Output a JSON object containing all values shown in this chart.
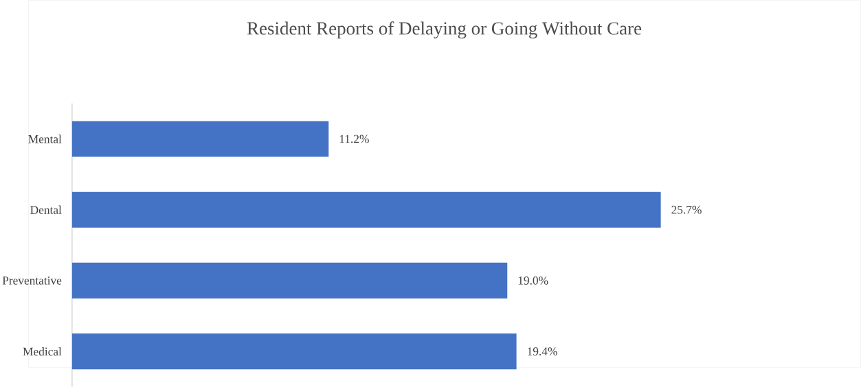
{
  "chart_data": {
    "type": "bar",
    "orientation": "horizontal",
    "title": "Resident Reports of Delaying or Going Without Care",
    "categories": [
      "Mental",
      "Dental",
      "Preventative",
      "Medical"
    ],
    "values": [
      11.2,
      25.7,
      19.0,
      19.4
    ],
    "value_labels": [
      "11.2%",
      "25.7%",
      "19.0%",
      "19.4%"
    ],
    "color": "#4472c4"
  }
}
